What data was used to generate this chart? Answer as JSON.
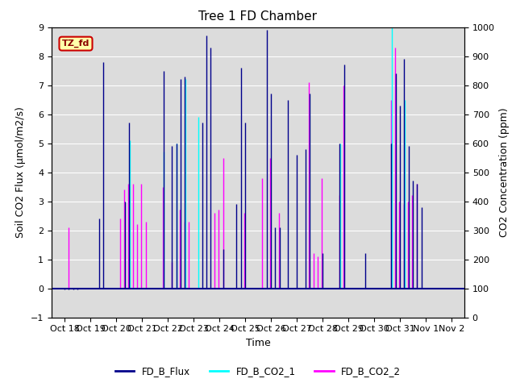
{
  "title": "Tree 1 FD Chamber",
  "xlabel": "Time",
  "ylabel_left": "Soil CO2 Flux (μmol/m2/s)",
  "ylabel_right": "CO2 Concentration (ppm)",
  "ylim_left": [
    -1.0,
    9.0
  ],
  "ylim_right": [
    0,
    1000
  ],
  "yticks_left": [
    -1.0,
    0.0,
    1.0,
    2.0,
    3.0,
    4.0,
    5.0,
    6.0,
    7.0,
    8.0,
    9.0
  ],
  "yticks_right": [
    0,
    100,
    200,
    300,
    400,
    500,
    600,
    700,
    800,
    900,
    1000
  ],
  "bg_color": "#dcdcdc",
  "annotation_text": "TZ_fd",
  "annotation_bg": "#ffffaa",
  "annotation_border": "#cc0000",
  "colors": {
    "FD_B_Flux": "#00008B",
    "FD_B_CO2_1": "#00FFFF",
    "FD_B_CO2_2": "#FF00FF"
  },
  "flux_data": [
    [
      0,
      -0.05
    ],
    [
      1,
      -0.05
    ],
    [
      2,
      -0.05
    ],
    [
      3,
      -0.05
    ],
    [
      4,
      0.0
    ],
    [
      5,
      0.0
    ],
    [
      6,
      0.0
    ],
    [
      7,
      0.0
    ],
    [
      8,
      2.4
    ],
    [
      9,
      7.8
    ],
    [
      10,
      0.0
    ],
    [
      11,
      0.0
    ],
    [
      12,
      0.0
    ],
    [
      13,
      0.0
    ],
    [
      14,
      3.0
    ],
    [
      15,
      5.7
    ],
    [
      16,
      0.0
    ],
    [
      17,
      0.0
    ],
    [
      18,
      0.0
    ],
    [
      19,
      0.0
    ],
    [
      20,
      0.0
    ],
    [
      21,
      0.0
    ],
    [
      22,
      0.0
    ],
    [
      23,
      7.5
    ],
    [
      24,
      0.0
    ],
    [
      25,
      4.9
    ],
    [
      26,
      5.0
    ],
    [
      27,
      7.2
    ],
    [
      28,
      7.3
    ],
    [
      29,
      0.0
    ],
    [
      30,
      0.0
    ],
    [
      31,
      0.0
    ],
    [
      32,
      5.7
    ],
    [
      33,
      8.7
    ],
    [
      34,
      8.3
    ],
    [
      35,
      0.0
    ],
    [
      36,
      0.0
    ],
    [
      37,
      1.35
    ],
    [
      38,
      0.0
    ],
    [
      39,
      0.0
    ],
    [
      40,
      2.9
    ],
    [
      41,
      7.6
    ],
    [
      42,
      5.7
    ],
    [
      43,
      0.0
    ],
    [
      44,
      0.0
    ],
    [
      45,
      0.0
    ],
    [
      46,
      0.0
    ],
    [
      47,
      8.9
    ],
    [
      48,
      6.7
    ],
    [
      49,
      2.1
    ],
    [
      50,
      2.1
    ],
    [
      51,
      0.0
    ],
    [
      52,
      6.5
    ],
    [
      53,
      0.0
    ],
    [
      54,
      4.6
    ],
    [
      55,
      0.0
    ],
    [
      56,
      4.8
    ],
    [
      57,
      6.7
    ],
    [
      58,
      0.0
    ],
    [
      59,
      0.0
    ],
    [
      60,
      1.2
    ],
    [
      61,
      0.0
    ],
    [
      62,
      0.0
    ],
    [
      63,
      0.0
    ],
    [
      64,
      5.0
    ],
    [
      65,
      7.7
    ],
    [
      66,
      0.0
    ],
    [
      67,
      0.0
    ],
    [
      68,
      0.0
    ],
    [
      69,
      0.0
    ],
    [
      70,
      1.2
    ],
    [
      71,
      0.0
    ],
    [
      72,
      0.0
    ],
    [
      73,
      0.0
    ],
    [
      74,
      0.0
    ],
    [
      75,
      0.0
    ],
    [
      76,
      5.0
    ],
    [
      77,
      7.4
    ],
    [
      78,
      6.3
    ],
    [
      79,
      7.9
    ],
    [
      80,
      4.9
    ],
    [
      81,
      3.7
    ],
    [
      82,
      3.6
    ],
    [
      83,
      2.8
    ]
  ],
  "co2_1_data": [
    [
      15,
      5.1
    ],
    [
      23,
      4.7
    ],
    [
      26,
      5.0
    ],
    [
      28,
      7.2
    ],
    [
      31,
      5.9
    ],
    [
      64,
      5.0
    ],
    [
      76,
      9.7
    ],
    [
      79,
      6.5
    ]
  ],
  "co2_2_data": [
    [
      1,
      2.1
    ],
    [
      13,
      2.4
    ],
    [
      14,
      3.4
    ],
    [
      15,
      3.6
    ],
    [
      16,
      3.6
    ],
    [
      17,
      2.2
    ],
    [
      18,
      3.6
    ],
    [
      19,
      2.3
    ],
    [
      23,
      3.5
    ],
    [
      25,
      0.9
    ],
    [
      27,
      2.7
    ],
    [
      28,
      2.3
    ],
    [
      29,
      2.3
    ],
    [
      35,
      2.6
    ],
    [
      36,
      2.7
    ],
    [
      37,
      4.5
    ],
    [
      42,
      2.6
    ],
    [
      46,
      3.8
    ],
    [
      48,
      4.5
    ],
    [
      50,
      2.6
    ],
    [
      57,
      7.1
    ],
    [
      58,
      1.2
    ],
    [
      59,
      1.1
    ],
    [
      60,
      3.8
    ],
    [
      64,
      3.2
    ],
    [
      65,
      7.0
    ],
    [
      76,
      6.5
    ],
    [
      77,
      8.3
    ],
    [
      78,
      3.0
    ],
    [
      79,
      2.9
    ],
    [
      80,
      3.0
    ],
    [
      81,
      3.2
    ],
    [
      82,
      3.6
    ]
  ],
  "xtick_positions": [
    0,
    6,
    12,
    18,
    24,
    30,
    36,
    42,
    48,
    54,
    60,
    66,
    72,
    78,
    84,
    90
  ],
  "xtick_labels": [
    "Oct 18",
    "Oct 19",
    "Oct 20",
    "Oct 21",
    "Oct 22",
    "Oct 23",
    "Oct 24",
    "Oct 25",
    "Oct 26",
    "Oct 27",
    "Oct 28",
    "Oct 29",
    "Oct 30",
    "Oct 31",
    "Nov 1",
    "Nov 2"
  ],
  "xlim": [
    -3,
    93
  ]
}
